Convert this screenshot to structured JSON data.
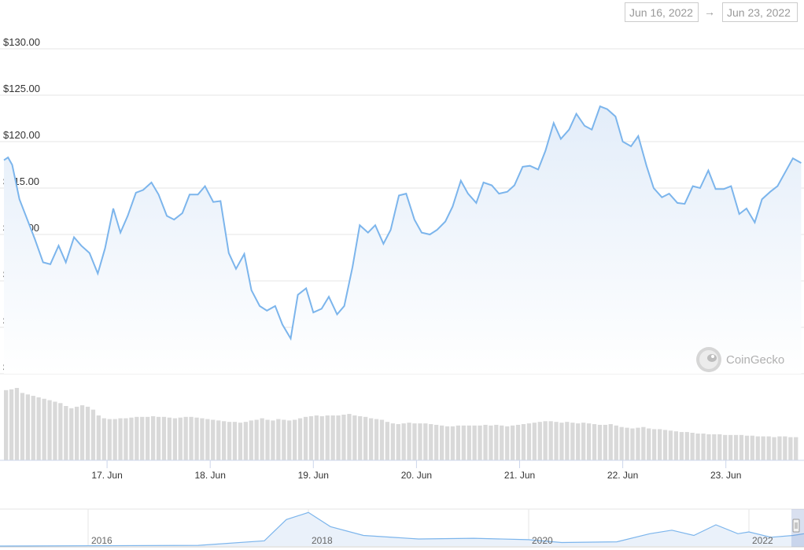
{
  "range_selector": {
    "from": "Jun 16, 2022",
    "arrow": "→",
    "to": "Jun 23, 2022"
  },
  "watermark": {
    "text": "CoinGecko",
    "icon": "gecko-icon"
  },
  "colors": {
    "line": "#7cb5ec",
    "fill_top": "#e3edf9",
    "fill_bottom": "#ffffff",
    "volume": "#d9d9d9",
    "grid": "#e6e6e6"
  },
  "chart_data": {
    "type": "line",
    "x_range": [
      "2022-06-16",
      "2022-06-23"
    ],
    "ylim": [
      95,
      130
    ],
    "yticks": [
      130,
      125,
      120,
      115,
      110,
      105,
      100,
      95
    ],
    "ytick_labels": [
      "$130.00",
      "$125.00",
      "$120.00",
      "$115.00",
      "$110.00",
      "$105.00",
      "$100.00",
      "$95.00"
    ],
    "xtick_labels": [
      "17. Jun",
      "18. Jun",
      "19. Jun",
      "20. Jun",
      "21. Jun",
      "22. Jun",
      "23. Jun"
    ],
    "xtick_days": [
      1,
      2,
      3,
      4,
      5,
      6,
      7
    ],
    "grid": true,
    "series": [
      {
        "kind": "price",
        "x_days": [
          0.0,
          0.04,
          0.08,
          0.15,
          0.23,
          0.3,
          0.38,
          0.45,
          0.53,
          0.6,
          0.68,
          0.75,
          0.83,
          0.91,
          0.98,
          1.06,
          1.13,
          1.2,
          1.28,
          1.35,
          1.43,
          1.5,
          1.58,
          1.65,
          1.73,
          1.8,
          1.88,
          1.95,
          2.03,
          2.1,
          2.18,
          2.25,
          2.33,
          2.4,
          2.48,
          2.55,
          2.63,
          2.7,
          2.78,
          2.85,
          2.93,
          3.0,
          3.08,
          3.15,
          3.23,
          3.3,
          3.38,
          3.45,
          3.53,
          3.6,
          3.68,
          3.75,
          3.83,
          3.9,
          3.98,
          4.05,
          4.13,
          4.2,
          4.28,
          4.35,
          4.43,
          4.5,
          4.58,
          4.65,
          4.73,
          4.8,
          4.88,
          4.95,
          5.03,
          5.1,
          5.18,
          5.25,
          5.33,
          5.4,
          5.48,
          5.55,
          5.63,
          5.7,
          5.78,
          5.85,
          5.93,
          6.0,
          6.08,
          6.15,
          6.23,
          6.3,
          6.38,
          6.45,
          6.53,
          6.6,
          6.68,
          6.75,
          6.83,
          6.9,
          6.98,
          7.05,
          7.13,
          7.2,
          7.28,
          7.35,
          7.43,
          7.5,
          7.58,
          7.65,
          7.73
        ],
        "values": [
          118.0,
          118.3,
          117.5,
          113.8,
          111.5,
          109.5,
          107.0,
          106.8,
          108.8,
          107.0,
          109.7,
          108.8,
          108.0,
          105.8,
          108.5,
          112.8,
          110.2,
          112.0,
          114.5,
          114.8,
          115.6,
          114.3,
          112.0,
          111.6,
          112.3,
          114.3,
          114.3,
          115.2,
          113.5,
          113.6,
          108.0,
          106.3,
          107.9,
          104.0,
          102.3,
          101.8,
          102.3,
          100.3,
          98.8,
          103.5,
          104.2,
          101.6,
          102.0,
          103.3,
          101.4,
          102.3,
          106.5,
          111.0,
          110.2,
          111.0,
          109.0,
          110.5,
          114.2,
          114.4,
          111.6,
          110.2,
          110.0,
          110.5,
          111.4,
          113.0,
          115.8,
          114.4,
          113.4,
          115.6,
          115.3,
          114.4,
          114.6,
          115.3,
          117.3,
          117.4,
          117.0,
          119.0,
          122.0,
          120.3,
          121.3,
          123.0,
          121.7,
          121.3,
          123.8,
          123.5,
          122.7,
          120.0,
          119.5,
          120.6,
          117.4,
          115.0,
          114.0,
          114.4,
          113.4,
          113.3,
          115.2,
          115.0,
          116.9,
          114.9,
          114.9,
          115.2,
          112.2,
          112.8,
          111.3,
          113.8,
          114.6,
          115.2,
          116.8,
          118.2,
          117.7
        ]
      },
      {
        "kind": "volume",
        "relative_values": [
          0.97,
          0.98,
          1.0,
          0.93,
          0.91,
          0.89,
          0.87,
          0.85,
          0.83,
          0.81,
          0.79,
          0.75,
          0.72,
          0.74,
          0.76,
          0.74,
          0.7,
          0.62,
          0.58,
          0.57,
          0.57,
          0.58,
          0.58,
          0.59,
          0.6,
          0.6,
          0.6,
          0.61,
          0.6,
          0.6,
          0.59,
          0.58,
          0.59,
          0.6,
          0.6,
          0.59,
          0.58,
          0.57,
          0.56,
          0.55,
          0.54,
          0.53,
          0.53,
          0.52,
          0.53,
          0.55,
          0.56,
          0.58,
          0.56,
          0.55,
          0.57,
          0.56,
          0.55,
          0.56,
          0.58,
          0.6,
          0.61,
          0.62,
          0.61,
          0.62,
          0.62,
          0.62,
          0.63,
          0.64,
          0.62,
          0.61,
          0.6,
          0.58,
          0.57,
          0.56,
          0.53,
          0.51,
          0.5,
          0.51,
          0.52,
          0.51,
          0.51,
          0.51,
          0.5,
          0.49,
          0.48,
          0.47,
          0.47,
          0.48,
          0.48,
          0.48,
          0.48,
          0.48,
          0.49,
          0.48,
          0.49,
          0.48,
          0.47,
          0.48,
          0.49,
          0.5,
          0.51,
          0.52,
          0.53,
          0.54,
          0.54,
          0.53,
          0.52,
          0.53,
          0.52,
          0.51,
          0.52,
          0.51,
          0.5,
          0.49,
          0.49,
          0.5,
          0.48,
          0.46,
          0.45,
          0.44,
          0.45,
          0.46,
          0.44,
          0.43,
          0.43,
          0.42,
          0.41,
          0.4,
          0.39,
          0.39,
          0.38,
          0.37,
          0.37,
          0.36,
          0.36,
          0.36,
          0.35,
          0.35,
          0.35,
          0.35,
          0.34,
          0.34,
          0.33,
          0.33,
          0.33,
          0.32,
          0.33,
          0.33,
          0.32,
          0.32
        ]
      }
    ],
    "navigator": {
      "tick_labels": [
        "2016",
        "2018",
        "2020",
        "2022"
      ],
      "tick_years": [
        2016,
        2018,
        2020,
        2022
      ],
      "year_range": [
        2015.2,
        2022.5
      ],
      "x_years": [
        2015.2,
        2017.0,
        2017.6,
        2017.8,
        2018.0,
        2018.2,
        2018.5,
        2019.0,
        2019.5,
        2020.0,
        2020.3,
        2020.8,
        2021.1,
        2021.3,
        2021.5,
        2021.7,
        2021.9,
        2022.0,
        2022.2,
        2022.4,
        2022.5
      ],
      "relative_values": [
        0.0,
        0.02,
        0.15,
        0.75,
        0.95,
        0.55,
        0.3,
        0.2,
        0.22,
        0.18,
        0.1,
        0.12,
        0.35,
        0.45,
        0.3,
        0.6,
        0.35,
        0.4,
        0.25,
        0.3,
        0.35
      ]
    }
  }
}
